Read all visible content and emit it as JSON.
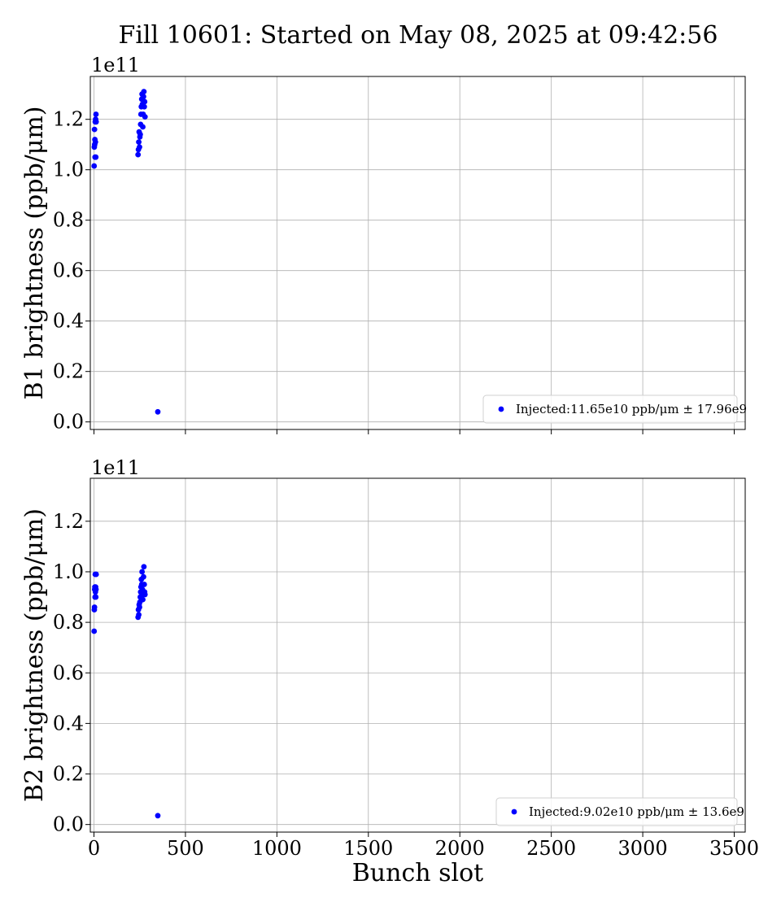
{
  "title": "Fill 10601: Started on May 08, 2025 at 09:42:56",
  "colors": {
    "marker": "#0000ff",
    "grid": "#b0b0b0",
    "axis": "#000000"
  },
  "chart_data": [
    {
      "type": "scatter",
      "ylabel": "B1 brightness (ppb/μm)",
      "xlabel": "",
      "offset_label": "1e11",
      "xlim": [
        -20,
        3560
      ],
      "ylim": [
        -0.03,
        1.37
      ],
      "xticks": [
        0,
        500,
        1000,
        1500,
        2000,
        2500,
        3000,
        3500
      ],
      "yticks": [
        0.0,
        0.2,
        0.4,
        0.6,
        0.8,
        1.0,
        1.2
      ],
      "ytick_labels": [
        "0.0",
        "0.2",
        "0.4",
        "0.6",
        "0.8",
        "1.0",
        "1.2"
      ],
      "grid": true,
      "legend_position": "lower-right",
      "series": [
        {
          "name": "Injected:11.65e10 ppb/μm ± 17.96e9",
          "x": [
            1,
            2,
            3,
            4,
            5,
            6,
            7,
            8,
            9,
            10,
            11,
            12,
            241,
            243,
            245,
            247,
            249,
            251,
            253,
            255,
            257,
            259,
            261,
            263,
            265,
            267,
            269,
            271,
            273,
            275,
            277,
            279,
            349
          ],
          "y": [
            1.015,
            1.09,
            1.16,
            1.1,
            1.12,
            1.05,
            1.19,
            1.11,
            1.2,
            1.05,
            1.22,
            1.19,
            1.06,
            1.08,
            1.11,
            1.15,
            1.09,
            1.13,
            1.14,
            1.18,
            1.22,
            1.25,
            1.28,
            1.3,
            1.26,
            1.17,
            1.22,
            1.29,
            1.31,
            1.25,
            1.27,
            1.21,
            0.04
          ]
        }
      ]
    },
    {
      "type": "scatter",
      "ylabel": "B2 brightness (ppb/μm)",
      "xlabel": "Bunch slot",
      "offset_label": "1e11",
      "xlim": [
        -20,
        3560
      ],
      "ylim": [
        -0.03,
        1.37
      ],
      "xticks": [
        0,
        500,
        1000,
        1500,
        2000,
        2500,
        3000,
        3500
      ],
      "xtick_labels": [
        "0",
        "500",
        "1000",
        "1500",
        "2000",
        "2500",
        "3000",
        "3500"
      ],
      "yticks": [
        0.0,
        0.2,
        0.4,
        0.6,
        0.8,
        1.0,
        1.2
      ],
      "ytick_labels": [
        "0.0",
        "0.2",
        "0.4",
        "0.6",
        "0.8",
        "1.0",
        "1.2"
      ],
      "grid": true,
      "legend_position": "lower-right",
      "series": [
        {
          "name": "Injected:9.02e10 ppb/μm ± 13.6e9",
          "x": [
            1,
            2,
            3,
            4,
            5,
            6,
            7,
            8,
            9,
            10,
            11,
            12,
            241,
            243,
            245,
            247,
            249,
            251,
            253,
            255,
            257,
            259,
            261,
            263,
            265,
            267,
            269,
            271,
            273,
            275,
            277,
            279,
            349
          ],
          "y": [
            0.765,
            0.85,
            0.86,
            0.93,
            0.94,
            0.9,
            0.99,
            0.92,
            0.94,
            0.9,
            0.93,
            0.99,
            0.82,
            0.85,
            0.83,
            0.87,
            0.86,
            0.88,
            0.9,
            0.92,
            0.94,
            0.97,
            0.95,
            1.0,
            0.93,
            0.89,
            0.91,
            0.98,
            1.02,
            0.95,
            0.92,
            0.91,
            0.035
          ]
        }
      ]
    }
  ]
}
